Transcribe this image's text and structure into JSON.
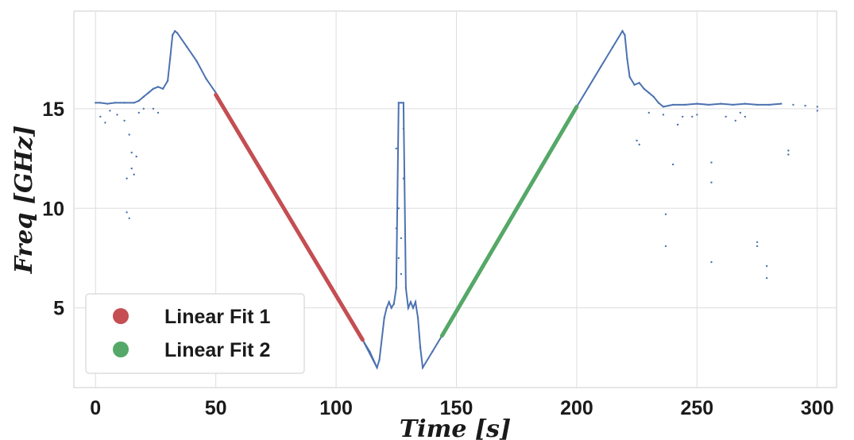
{
  "chart_data": {
    "type": "scatter",
    "xlabel": "Time [s]",
    "ylabel": "Freq [GHz]",
    "xlim": [
      -9,
      308
    ],
    "ylim": [
      1.0,
      19.9
    ],
    "xticks": [
      "0",
      "50",
      "100",
      "150",
      "200",
      "250",
      "300"
    ],
    "yticks": [
      "5",
      "10",
      "15"
    ],
    "xtick_values": [
      0,
      50,
      100,
      150,
      200,
      250,
      300
    ],
    "ytick_values": [
      5,
      10,
      15
    ],
    "grid": true,
    "legend_position": "lower-left",
    "series": [
      {
        "color": "#4c72b0",
        "marker": "dot",
        "points": [
          [
            0,
            15.3
          ],
          [
            2,
            15.3
          ],
          [
            5,
            15.25
          ],
          [
            8,
            15.3
          ],
          [
            12,
            15.3
          ],
          [
            16,
            15.3
          ],
          [
            18,
            15.4
          ],
          [
            20,
            15.6
          ],
          [
            22,
            15.8
          ],
          [
            24,
            16.0
          ],
          [
            26,
            16.1
          ],
          [
            28,
            16.0
          ],
          [
            30,
            16.4
          ],
          [
            31,
            17.5
          ],
          [
            32,
            18.7
          ],
          [
            33,
            18.9
          ],
          [
            34,
            18.8
          ],
          [
            38,
            18.1
          ],
          [
            42,
            17.4
          ],
          [
            46,
            16.5
          ],
          [
            50,
            15.8
          ],
          [
            111,
            3.4
          ],
          [
            114,
            2.8
          ],
          [
            117,
            2.0
          ],
          [
            118,
            2.4
          ],
          [
            120,
            4.5
          ],
          [
            121,
            5.0
          ],
          [
            122,
            5.3
          ],
          [
            123,
            5.0
          ],
          [
            124,
            5.2
          ],
          [
            125,
            6.0
          ],
          [
            126,
            15.3
          ],
          [
            127,
            15.3
          ],
          [
            128,
            15.3
          ],
          [
            129,
            6.0
          ],
          [
            130,
            5.0
          ],
          [
            131,
            5.3
          ],
          [
            132,
            5.0
          ],
          [
            133,
            5.3
          ],
          [
            134,
            4.5
          ],
          [
            135,
            3.0
          ],
          [
            136,
            2.0
          ],
          [
            140,
            2.8
          ],
          [
            144,
            3.6
          ],
          [
            200,
            15.1
          ],
          [
            205,
            16.1
          ],
          [
            210,
            17.1
          ],
          [
            215,
            18.1
          ],
          [
            219,
            18.9
          ],
          [
            220,
            18.7
          ],
          [
            221,
            17.5
          ],
          [
            222,
            16.6
          ],
          [
            224,
            16.2
          ],
          [
            226,
            16.3
          ],
          [
            228,
            16.0
          ],
          [
            230,
            15.8
          ],
          [
            232,
            15.6
          ],
          [
            234,
            15.3
          ],
          [
            236,
            15.1
          ],
          [
            240,
            15.2
          ],
          [
            245,
            15.2
          ],
          [
            250,
            15.25
          ],
          [
            255,
            15.2
          ],
          [
            260,
            15.25
          ],
          [
            265,
            15.2
          ],
          [
            270,
            15.25
          ],
          [
            275,
            15.2
          ],
          [
            280,
            15.2
          ],
          [
            285,
            15.25
          ],
          [
            290,
            15.2
          ],
          [
            295,
            15.15
          ],
          [
            300,
            15.1
          ],
          [
            2,
            14.6
          ],
          [
            4,
            14.3
          ],
          [
            6,
            14.9
          ],
          [
            9,
            14.7
          ],
          [
            12,
            14.4
          ],
          [
            13,
            11.5
          ],
          [
            13,
            9.8
          ],
          [
            14,
            9.5
          ],
          [
            15,
            12.0
          ],
          [
            16,
            11.7
          ],
          [
            15,
            12.8
          ],
          [
            17,
            12.6
          ],
          [
            14,
            13.7
          ],
          [
            18,
            14.8
          ],
          [
            20,
            15.0
          ],
          [
            24,
            15.0
          ],
          [
            26,
            14.8
          ],
          [
            125,
            13.0
          ],
          [
            126,
            10.0
          ],
          [
            127,
            8.5
          ],
          [
            128,
            11.5
          ],
          [
            126,
            7.5
          ],
          [
            127,
            6.7
          ],
          [
            128,
            14.0
          ],
          [
            125,
            9.0
          ],
          [
            225,
            13.4
          ],
          [
            226,
            13.2
          ],
          [
            230,
            14.8
          ],
          [
            236,
            14.7
          ],
          [
            237,
            9.7
          ],
          [
            237,
            8.1
          ],
          [
            240,
            12.2
          ],
          [
            242,
            14.2
          ],
          [
            244,
            14.6
          ],
          [
            256,
            12.3
          ],
          [
            256,
            11.3
          ],
          [
            256,
            7.3
          ],
          [
            262,
            14.6
          ],
          [
            266,
            14.4
          ],
          [
            270,
            14.6
          ],
          [
            275,
            8.3
          ],
          [
            275,
            8.1
          ],
          [
            279,
            7.1
          ],
          [
            279,
            6.5
          ],
          [
            288,
            12.9
          ],
          [
            288,
            12.7
          ],
          [
            300,
            14.9
          ],
          [
            250,
            14.7
          ],
          [
            248,
            14.6
          ],
          [
            268,
            14.8
          ]
        ]
      },
      {
        "name": "Linear Fit 1",
        "color": "#c44e52",
        "type": "line",
        "x": [
          50,
          111
        ],
        "y": [
          15.7,
          3.4
        ]
      },
      {
        "name": "Linear Fit 2",
        "color": "#55a868",
        "type": "line",
        "x": [
          144,
          200
        ],
        "y": [
          3.6,
          15.1
        ]
      }
    ],
    "legend": [
      "Linear Fit 1",
      "Linear Fit 2"
    ]
  }
}
